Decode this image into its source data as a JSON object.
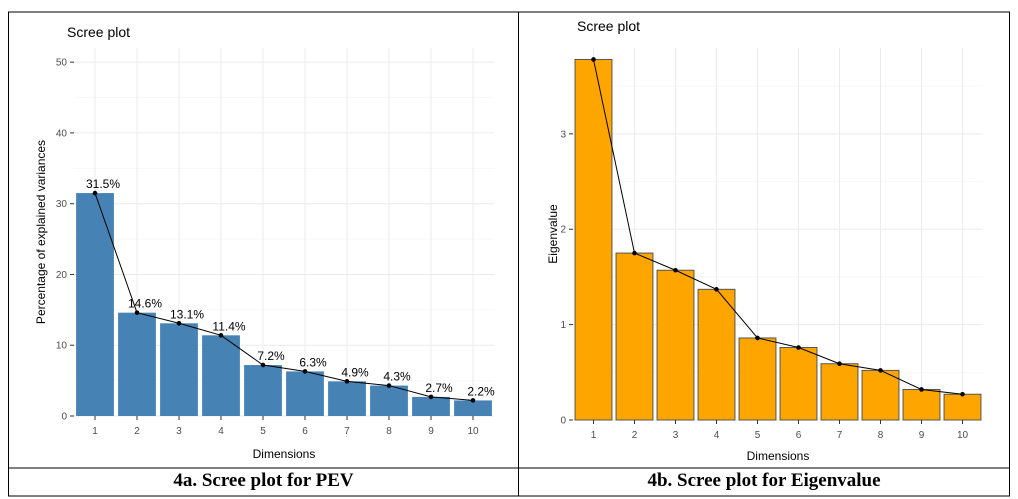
{
  "chart_data": [
    {
      "type": "bar",
      "title": "Scree plot",
      "xlabel": "Dimensions",
      "ylabel": "Percentage of explained variances",
      "categories": [
        "1",
        "2",
        "3",
        "4",
        "5",
        "6",
        "7",
        "8",
        "9",
        "10"
      ],
      "values": [
        31.5,
        14.6,
        13.1,
        11.4,
        7.2,
        6.3,
        4.9,
        4.3,
        2.7,
        2.2
      ],
      "data_labels": [
        "31.5%",
        "14.6%",
        "13.1%",
        "11.4%",
        "7.2%",
        "6.3%",
        "4.9%",
        "4.3%",
        "2.7%",
        "2.2%"
      ],
      "ylim": [
        0,
        52
      ],
      "yticks": [
        0,
        10,
        20,
        30,
        40,
        50
      ],
      "bar_color": "#4682b4",
      "line": true,
      "grid": true,
      "caption": "4a. Scree plot for PEV"
    },
    {
      "type": "bar",
      "title": "Scree plot",
      "xlabel": "Dimensions",
      "ylabel": "Eigenvalue",
      "categories": [
        "1",
        "2",
        "3",
        "4",
        "5",
        "6",
        "7",
        "8",
        "9",
        "10"
      ],
      "values": [
        3.78,
        1.75,
        1.57,
        1.37,
        0.86,
        0.76,
        0.59,
        0.52,
        0.32,
        0.27
      ],
      "ylim": [
        0,
        3.9
      ],
      "yticks": [
        0,
        1,
        2,
        3
      ],
      "bar_color": "#ffa500",
      "line": true,
      "grid": true,
      "caption": "4b. Scree plot for Eigenvalue"
    }
  ]
}
